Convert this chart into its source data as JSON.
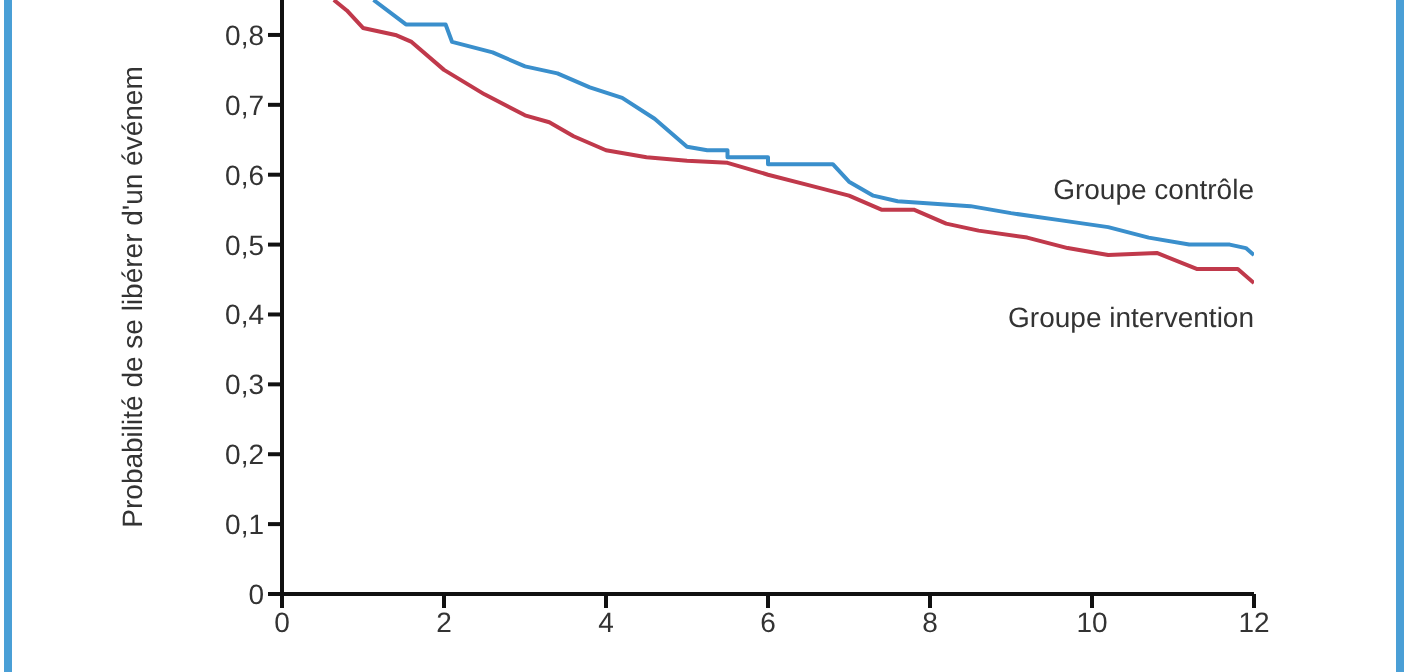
{
  "chart_data": {
    "type": "line",
    "ylabel": "Probabilité de se libérer d'un événem",
    "xlim": [
      0,
      12
    ],
    "xticks": [
      0,
      2,
      4,
      6,
      8,
      10,
      12
    ],
    "ylim": [
      0,
      0.85
    ],
    "yticks": [
      {
        "value": 0,
        "label": "0"
      },
      {
        "value": 0.1,
        "label": "0,1"
      },
      {
        "value": 0.2,
        "label": "0,2"
      },
      {
        "value": 0.3,
        "label": "0,3"
      },
      {
        "value": 0.4,
        "label": "0,4"
      },
      {
        "value": 0.5,
        "label": "0,5"
      },
      {
        "value": 0.6,
        "label": "0,6"
      },
      {
        "value": 0.7,
        "label": "0,7"
      },
      {
        "value": 0.8,
        "label": "0,8"
      }
    ],
    "grid": false,
    "legend": false,
    "marker": "none",
    "line_style": "solid",
    "series": [
      {
        "name": "Groupe contrôle",
        "color": "#3a8fcc",
        "x": [
          1.13,
          1.53,
          2.02,
          2.1,
          2.6,
          3.0,
          3.4,
          3.8,
          4.2,
          4.6,
          5.0,
          5.25,
          5.5,
          5.5,
          6.0,
          6.0,
          6.8,
          7.0,
          7.3,
          7.6,
          8.5,
          9.0,
          9.6,
          10.2,
          10.7,
          11.2,
          11.7,
          11.9,
          12.0
        ],
        "values": [
          0.85,
          0.815,
          0.815,
          0.79,
          0.775,
          0.755,
          0.745,
          0.725,
          0.71,
          0.68,
          0.64,
          0.635,
          0.635,
          0.625,
          0.625,
          0.615,
          0.615,
          0.59,
          0.57,
          0.562,
          0.555,
          0.545,
          0.535,
          0.525,
          0.51,
          0.5,
          0.5,
          0.495,
          0.485
        ]
      },
      {
        "name": "Groupe intervention",
        "color": "#c0394b",
        "x": [
          0.64,
          0.8,
          1.0,
          1.4,
          1.6,
          2.0,
          2.5,
          3.0,
          3.3,
          3.6,
          4.0,
          4.5,
          5.0,
          5.5,
          6.0,
          6.5,
          7.0,
          7.4,
          7.8,
          8.2,
          8.6,
          9.2,
          9.7,
          10.2,
          10.8,
          11.3,
          11.8,
          12.0
        ],
        "values": [
          0.85,
          0.835,
          0.81,
          0.8,
          0.79,
          0.75,
          0.715,
          0.685,
          0.675,
          0.655,
          0.635,
          0.625,
          0.62,
          0.617,
          0.6,
          0.585,
          0.57,
          0.55,
          0.55,
          0.53,
          0.52,
          0.51,
          0.495,
          0.485,
          0.488,
          0.465,
          0.465,
          0.445
        ]
      }
    ]
  }
}
